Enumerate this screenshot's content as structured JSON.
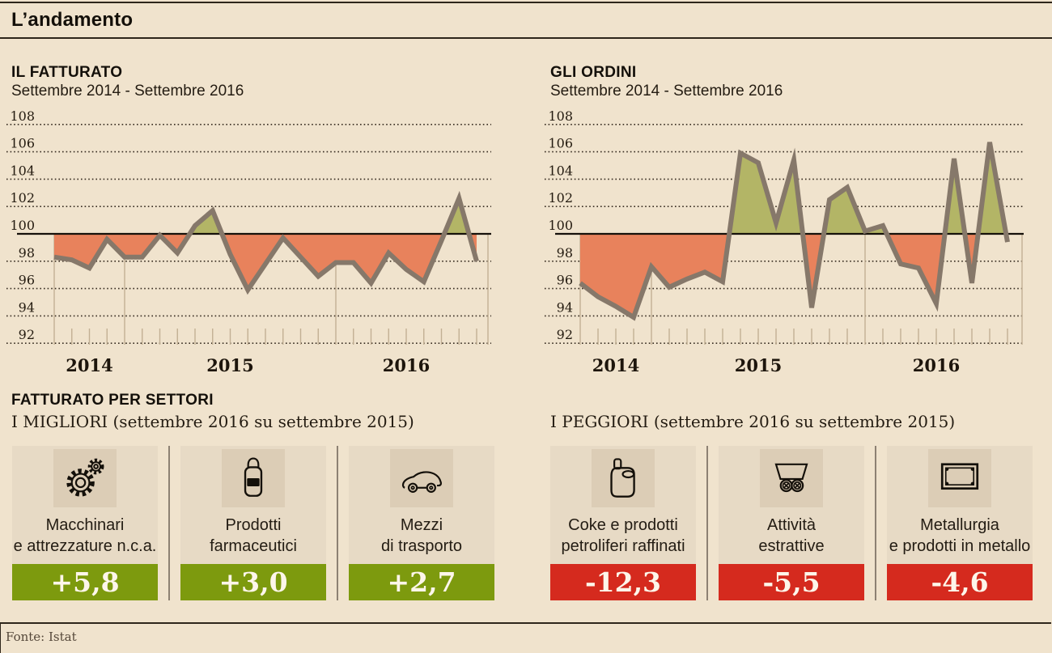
{
  "page": {
    "title": "L’andamento",
    "source": "Fonte: Istat"
  },
  "chart_data": [
    {
      "type": "area-line",
      "title": "IL FATTURATO",
      "subtitle": "Settembre 2014 - Settembre 2016",
      "x_labels": [
        "2014",
        "2015",
        "2016"
      ],
      "x_range": "Settembre 2014 - Settembre 2016",
      "y_ticks": [
        108,
        106,
        104,
        102,
        100,
        98,
        96,
        94,
        92
      ],
      "ylim": [
        92,
        108
      ],
      "baseline": 100,
      "grid": "dotted horizontal, solid line at 100",
      "legend": "area above 100 green, area below 100 orange",
      "values": [
        98.3,
        98.1,
        97.5,
        99.6,
        98.3,
        98.3,
        99.9,
        98.6,
        100.6,
        101.7,
        98.5,
        95.9,
        97.8,
        99.7,
        98.3,
        96.9,
        97.9,
        97.9,
        96.4,
        98.6,
        97.4,
        96.5,
        99.5,
        102.6,
        98.0
      ]
    },
    {
      "type": "area-line",
      "title": "GLI ORDINI",
      "subtitle": "Settembre 2014 - Settembre 2016",
      "x_labels": [
        "2014",
        "2015",
        "2016"
      ],
      "x_range": "Settembre 2014 - Settembre 2016",
      "y_ticks": [
        108,
        106,
        104,
        102,
        100,
        98,
        96,
        94,
        92
      ],
      "ylim": [
        92,
        108
      ],
      "baseline": 100,
      "grid": "dotted horizontal, solid line at 100",
      "legend": "area above 100 green, area below 100 orange",
      "values": [
        96.4,
        95.4,
        94.7,
        93.9,
        97.6,
        96.1,
        96.7,
        97.2,
        96.5,
        105.9,
        105.2,
        100.8,
        105.4,
        94.6,
        102.5,
        103.4,
        100.2,
        100.6,
        97.8,
        97.5,
        94.9,
        105.5,
        96.4,
        106.7,
        99.4
      ]
    }
  ],
  "sectors": {
    "heading": "FATTURATO PER SETTORI",
    "best_label": "I MIGLIORI (settembre 2016 su settembre 2015)",
    "worst_label": "I PEGGIORI (settembre 2016 su settembre 2015)",
    "best": [
      {
        "icon": "gears-icon",
        "label": "Macchinari\ne attrezzature n.c.a.",
        "value": "+5,8"
      },
      {
        "icon": "medicine-bottle-icon",
        "label": "Prodotti\nfarmaceutici",
        "value": "+3,0"
      },
      {
        "icon": "car-icon",
        "label": "Mezzi\ndi trasporto",
        "value": "+2,7"
      }
    ],
    "worst": [
      {
        "icon": "jerrycan-icon",
        "label": "Coke e prodotti\npetroliferi raffinati",
        "value": "-12,3"
      },
      {
        "icon": "mine-cart-icon",
        "label": "Attività\nestrattive",
        "value": "-5,5"
      },
      {
        "icon": "metal-plate-icon",
        "label": "Metallurgia\ne prodotti in metallo",
        "value": "-4,6"
      }
    ]
  },
  "colors": {
    "background": "#f0e3cd",
    "positive_band": "#7d9a0e",
    "negative_band": "#d52a1e",
    "fill_above_baseline": "#b3b566",
    "fill_below_baseline": "#e8825c",
    "data_line": "#86786a",
    "grid_dots": "#362b20",
    "axis_accessories": "#c2b094"
  }
}
